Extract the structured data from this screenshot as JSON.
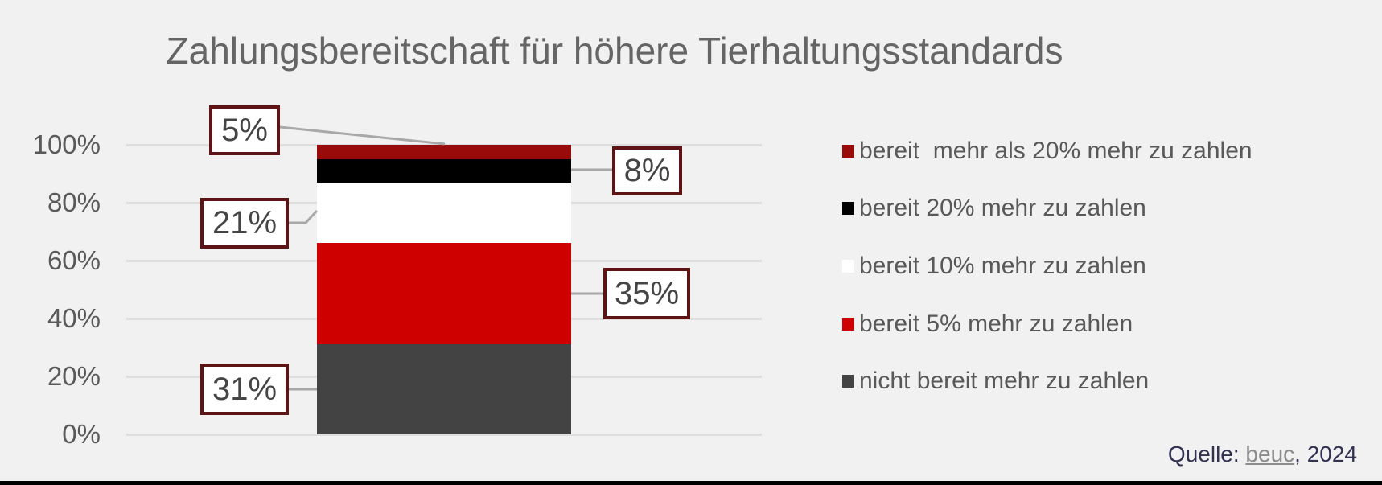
{
  "title": "Zahlungsbereitschaft für höhere Tierhaltungsstandards",
  "chart_data": {
    "type": "bar",
    "stacked": true,
    "orientation": "vertical",
    "categories": [
      "(single column, unlabeled)"
    ],
    "series": [
      {
        "name": "nicht bereit mehr zu zahlen",
        "values": [
          31
        ],
        "color": "#434343"
      },
      {
        "name": "bereit 5% mehr zu zahlen",
        "values": [
          35
        ],
        "color": "#CF0000"
      },
      {
        "name": "bereit 10% mehr zu zahlen",
        "values": [
          21
        ],
        "color": "#FFFFFF"
      },
      {
        "name": "bereit 20% mehr zu zahlen",
        "values": [
          8
        ],
        "color": "#000000"
      },
      {
        "name": "bereit  mehr als 20% mehr zu zahlen",
        "values": [
          5
        ],
        "color": "#990B0B"
      }
    ],
    "title": "Zahlungsbereitschaft für höhere Tierhaltungsstandards",
    "xlabel": "",
    "ylabel": "",
    "ylim": [
      0,
      100
    ],
    "yticks": [
      "0%",
      "20%",
      "40%",
      "60%",
      "80%",
      "100%"
    ],
    "grid": true,
    "legend_position": "right",
    "data_labels": {
      "more_than_20pct": "5%",
      "pct20": "8%",
      "pct10": "21%",
      "pct5": "35%",
      "not_willing": "31%"
    }
  },
  "legend": {
    "items": [
      {
        "label": "bereit  mehr als 20% mehr zu zahlen",
        "color": "#990B0B"
      },
      {
        "label": "bereit 20% mehr zu zahlen",
        "color": "#000000"
      },
      {
        "label": "bereit 10% mehr zu zahlen",
        "color": "#FFFFFF"
      },
      {
        "label": "bereit 5% mehr zu zahlen",
        "color": "#CF0000"
      },
      {
        "label": "nicht bereit mehr zu zahlen",
        "color": "#434343"
      }
    ]
  },
  "callouts": {
    "c5": "5%",
    "c8": "8%",
    "c21": "21%",
    "c35": "35%",
    "c31": "31%"
  },
  "source": {
    "prefix": "Quelle: ",
    "link_label": "beuc",
    "suffix": ", 2024"
  },
  "colors": {
    "background": "#F1F1F1",
    "title_text": "#656565",
    "axis_text": "#5A5A5A",
    "gridline": "#DEDEDE",
    "callout_border": "#5E1414",
    "callout_text": "#454545",
    "leader_line": "#A8A8A8",
    "legend_text": "#595959",
    "source_text": "#313152",
    "source_link": "#8C8C8C",
    "bottom_border": "#000000"
  }
}
